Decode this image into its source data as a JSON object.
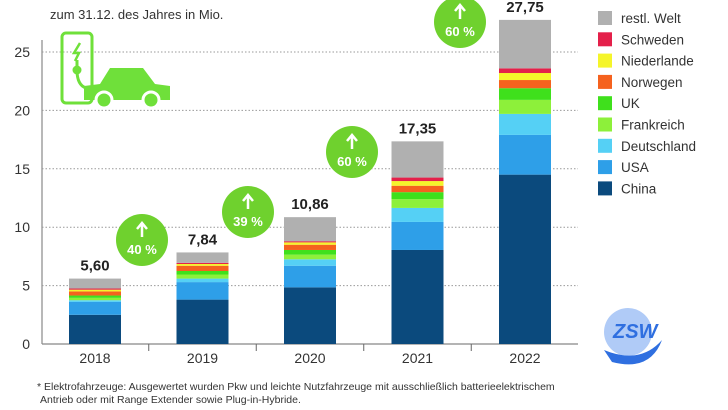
{
  "chart_data": {
    "type": "bar",
    "stacked": true,
    "subtitle": "zum 31.12. des Jahres in Mio.",
    "xlabel": "",
    "ylabel": "",
    "ylim": [
      0,
      27
    ],
    "yticks": [
      0,
      5,
      10,
      15,
      20,
      25
    ],
    "grid": true,
    "legend_position": "right",
    "categories": [
      "2018",
      "2019",
      "2020",
      "2021",
      "2022"
    ],
    "totals": [
      "5,60",
      "7,84",
      "10,86",
      "17,35",
      "27,75"
    ],
    "growth": [
      "40 %",
      "39 %",
      "60 %",
      "60 %"
    ],
    "series": [
      {
        "name": "China",
        "color": "#0b4a7d",
        "values": [
          2.5,
          3.8,
          4.85,
          8.05,
          14.5
        ]
      },
      {
        "name": "USA",
        "color": "#2e9fe8",
        "values": [
          1.1,
          1.5,
          1.85,
          2.4,
          3.4
        ]
      },
      {
        "name": "Deutschland",
        "color": "#55d0f5",
        "values": [
          0.15,
          0.3,
          0.55,
          1.2,
          1.8
        ]
      },
      {
        "name": "Frankreich",
        "color": "#8df03a",
        "values": [
          0.2,
          0.35,
          0.4,
          0.75,
          1.2
        ]
      },
      {
        "name": "UK",
        "color": "#3fe01c",
        "values": [
          0.2,
          0.3,
          0.4,
          0.6,
          1.0
        ]
      },
      {
        "name": "Norwegen",
        "color": "#f5621e",
        "values": [
          0.35,
          0.45,
          0.45,
          0.55,
          0.7
        ]
      },
      {
        "name": "Niederlande",
        "color": "#f5f52a",
        "values": [
          0.15,
          0.15,
          0.2,
          0.4,
          0.6
        ]
      },
      {
        "name": "Schweden",
        "color": "#e4204a",
        "values": [
          0.1,
          0.1,
          0.1,
          0.3,
          0.4
        ]
      },
      {
        "name": "restl. Welt",
        "color": "#b0b0b0",
        "values": [
          0.85,
          0.89,
          2.06,
          3.1,
          4.15
        ]
      }
    ]
  },
  "colors": {
    "bubble": "#6fd12e",
    "icon": "#6fe03a",
    "logo": "#2f6fe0"
  },
  "logo": {
    "text": "ZSW"
  },
  "footnote": {
    "line1": "* Elektrofahrzeuge: Ausgewertet wurden Pkw und leichte Nutzfahrzeuge mit ausschließlich batterieelektrischem",
    "line2": "Antrieb oder mit Range Extender sowie Plug-in-Hybride."
  }
}
